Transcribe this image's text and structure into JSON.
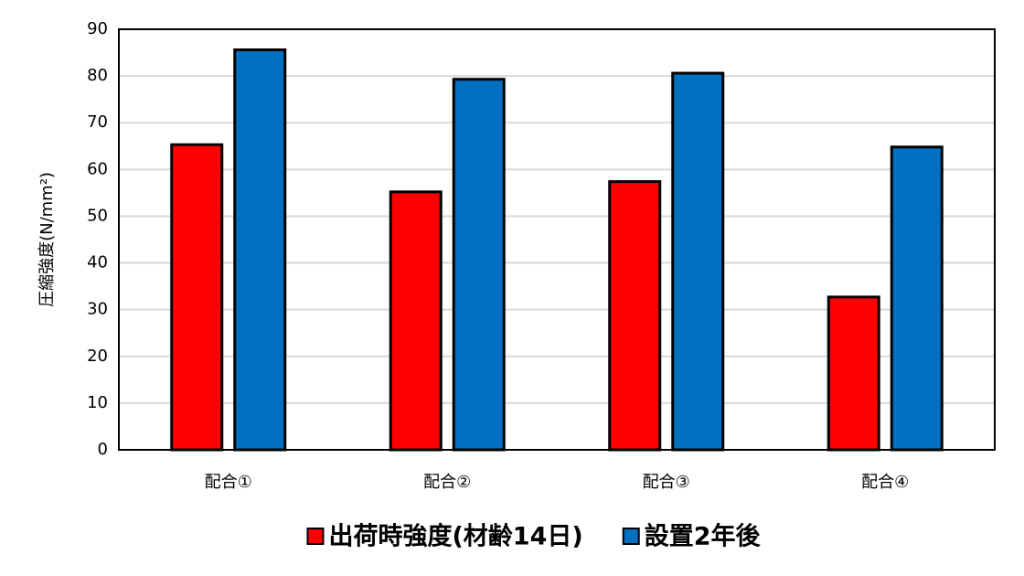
{
  "chart_data": {
    "type": "bar",
    "y_label": "圧縮強度(N/mm²)",
    "categories": [
      "配合①",
      "配合②",
      "配合③",
      "配合④"
    ],
    "series": [
      {
        "name": "出荷時強度(材齢14日)",
        "color": "#ff0000",
        "values": [
          65.3,
          55.2,
          57.4,
          32.7
        ]
      },
      {
        "name": "設置2年後",
        "color": "#0070c0",
        "values": [
          85.6,
          79.3,
          80.6,
          64.8
        ]
      }
    ],
    "ylim": [
      0,
      90
    ],
    "yticks": [
      0,
      10,
      20,
      30,
      40,
      50,
      60,
      70,
      80,
      90
    ],
    "grid": true,
    "legend": "bottom"
  }
}
